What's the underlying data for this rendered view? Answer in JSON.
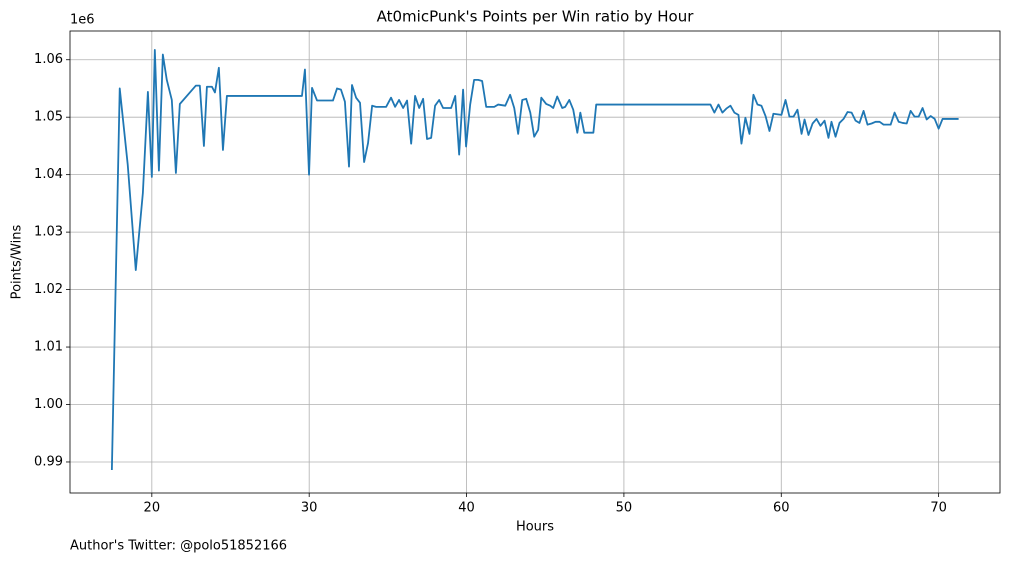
{
  "chart_data": {
    "type": "line",
    "title": "At0micPunk's Points per Win ratio by Hour",
    "xlabel": "Hours",
    "ylabel": "Points/Wins",
    "offset_label": "1e6",
    "footer": "Author's Twitter: @polo51852166",
    "color": "#1f77b4",
    "grid": true,
    "xlim": [
      14.8,
      73.9
    ],
    "ylim": [
      0.9846,
      1.065
    ],
    "xticks": [
      20,
      30,
      40,
      50,
      60,
      70
    ],
    "yticks": [
      0.99,
      {
        "value": 1,
        "label": "1.00"
      },
      1.01,
      1.02,
      1.03,
      1.04,
      1.05,
      1.06
    ],
    "x": [
      17.46,
      17.96,
      18.47,
      18.98,
      19.43,
      19.75,
      20.0,
      20.19,
      20.45,
      20.7,
      20.95,
      21.27,
      21.53,
      21.78,
      22.8,
      23.05,
      23.31,
      23.5,
      23.82,
      24.01,
      24.26,
      24.52,
      24.77,
      29.54,
      29.73,
      29.99,
      30.18,
      30.5,
      31.51,
      31.77,
      32.02,
      32.27,
      32.53,
      32.72,
      32.98,
      33.23,
      33.49,
      33.74,
      34.0,
      34.25,
      34.89,
      35.2,
      35.46,
      35.71,
      35.97,
      36.22,
      36.48,
      36.73,
      36.99,
      37.24,
      37.49,
      37.75,
      38.0,
      38.26,
      38.51,
      39.02,
      39.28,
      39.53,
      39.78,
      39.97,
      40.23,
      40.48,
      40.74,
      40.99,
      41.25,
      41.76,
      42.01,
      42.46,
      42.77,
      43.03,
      43.28,
      43.54,
      43.79,
      44.05,
      44.3,
      44.55,
      44.75,
      45.06,
      45.32,
      45.51,
      45.76,
      46.08,
      46.27,
      46.53,
      46.78,
      47.04,
      47.23,
      47.48,
      48.06,
      48.24,
      55.5,
      55.75,
      56.01,
      56.26,
      56.51,
      56.77,
      57.02,
      57.28,
      57.47,
      57.72,
      57.98,
      58.23,
      58.49,
      58.74,
      59.0,
      59.25,
      59.5,
      60.01,
      60.27,
      60.52,
      60.78,
      61.03,
      61.29,
      61.48,
      61.73,
      61.99,
      62.24,
      62.49,
      62.75,
      63.0,
      63.19,
      63.45,
      63.7,
      63.96,
      64.21,
      64.47,
      64.72,
      64.97,
      65.23,
      65.48,
      65.74,
      65.99,
      66.25,
      66.5,
      66.95,
      67.2,
      67.46,
      67.71,
      67.97,
      68.22,
      68.47,
      68.73,
      68.98,
      69.24,
      69.49,
      69.75,
      70.0,
      70.25,
      71.27
    ],
    "values": [
      0.9886,
      1.055,
      1.0417,
      1.0234,
      1.0368,
      1.0544,
      1.0396,
      1.0617,
      1.0407,
      1.0609,
      1.0565,
      1.053,
      1.0403,
      1.0523,
      1.0555,
      1.0555,
      1.045,
      1.0553,
      1.0553,
      1.0543,
      1.0586,
      1.0443,
      1.0537,
      1.0537,
      1.0583,
      1.04,
      1.0551,
      1.0529,
      1.0529,
      1.055,
      1.0548,
      1.0527,
      1.0414,
      1.0556,
      1.0534,
      1.0525,
      1.0422,
      1.0455,
      1.052,
      1.0518,
      1.0518,
      1.0534,
      1.0518,
      1.053,
      1.0516,
      1.0529,
      1.0454,
      1.0537,
      1.0516,
      1.0532,
      1.0462,
      1.0464,
      1.052,
      1.053,
      1.0516,
      1.0516,
      1.0537,
      1.0435,
      1.0548,
      1.0449,
      1.0522,
      1.0565,
      1.0565,
      1.0563,
      1.0518,
      1.0518,
      1.0522,
      1.052,
      1.0539,
      1.0516,
      1.0471,
      1.053,
      1.0532,
      1.0508,
      1.0466,
      1.0478,
      1.0534,
      1.0523,
      1.052,
      1.0516,
      1.0536,
      1.0516,
      1.0518,
      1.053,
      1.0513,
      1.0473,
      1.0508,
      1.0473,
      1.0473,
      1.0522,
      1.0522,
      1.0508,
      1.0522,
      1.0508,
      1.0515,
      1.052,
      1.0508,
      1.0504,
      1.0454,
      1.0499,
      1.0471,
      1.0539,
      1.0522,
      1.052,
      1.0502,
      1.0476,
      1.0506,
      1.0504,
      1.053,
      1.0501,
      1.0501,
      1.0513,
      1.0471,
      1.0496,
      1.0469,
      1.0489,
      1.0497,
      1.0485,
      1.0494,
      1.0464,
      1.0492,
      1.0466,
      1.049,
      1.0497,
      1.0509,
      1.0508,
      1.0494,
      1.049,
      1.0511,
      1.0487,
      1.0489,
      1.0492,
      1.0492,
      1.0487,
      1.0487,
      1.0508,
      1.0492,
      1.049,
      1.0489,
      1.0511,
      1.0501,
      1.0501,
      1.0516,
      1.0496,
      1.0502,
      1.0497,
      1.048,
      1.0497,
      1.0497
    ]
  }
}
